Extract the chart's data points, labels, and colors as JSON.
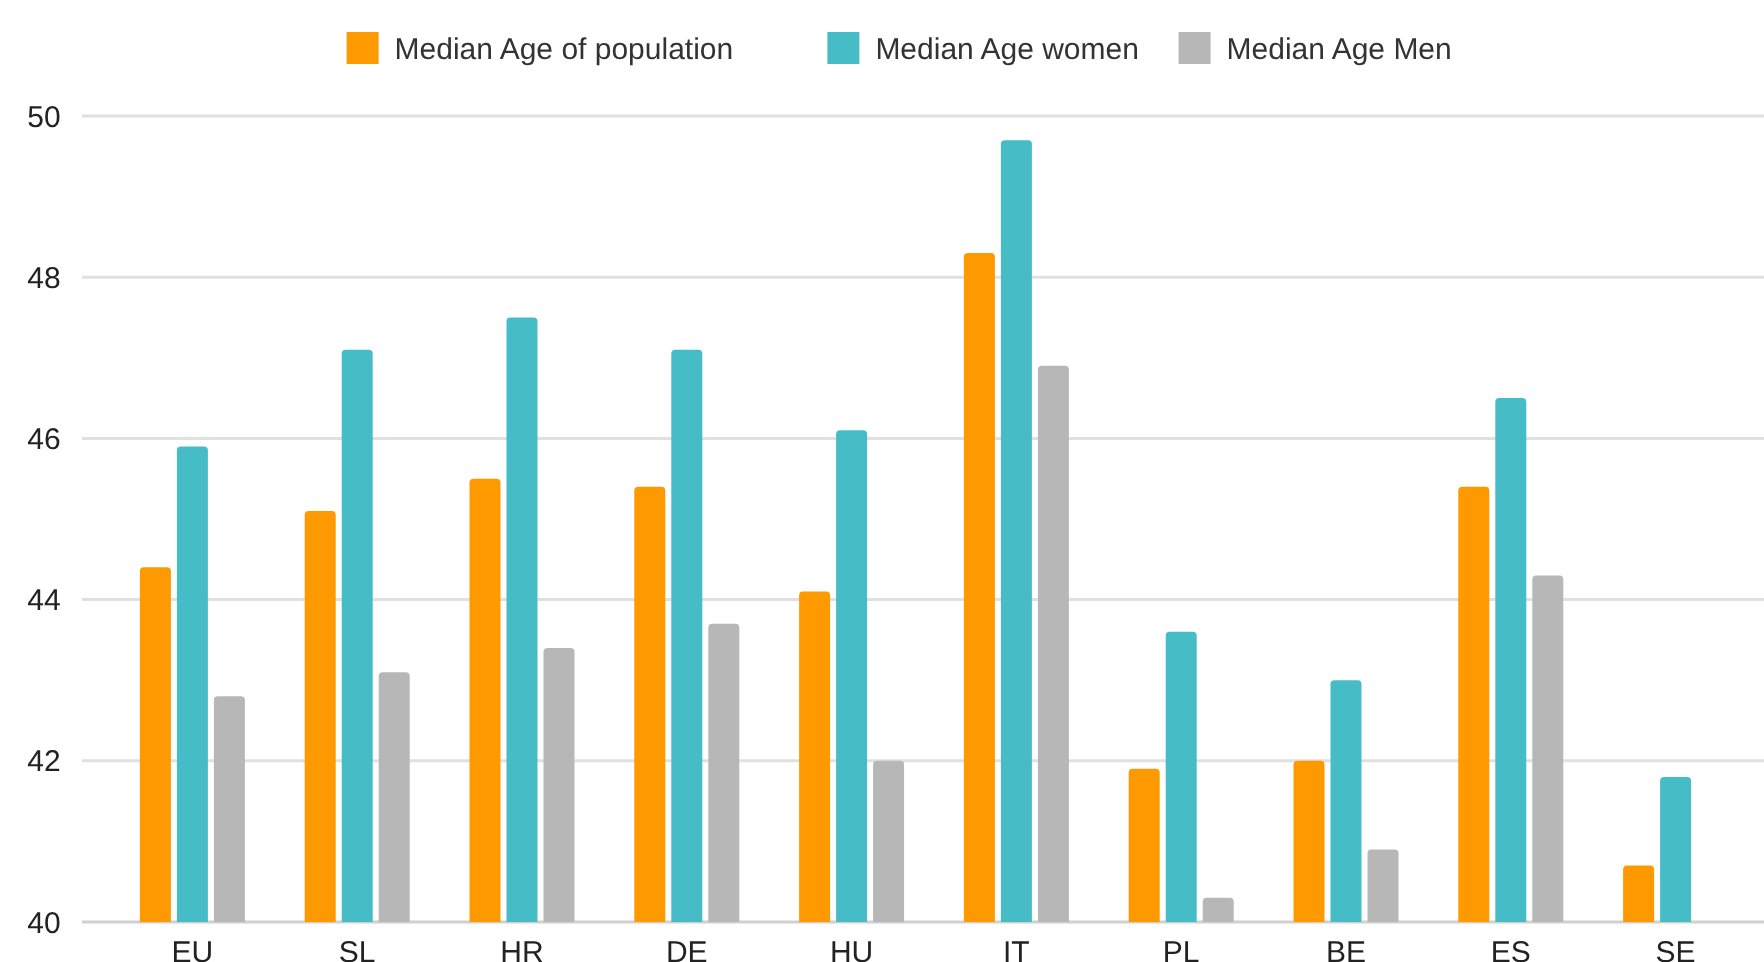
{
  "chart_data": {
    "type": "bar",
    "categories": [
      "EU",
      "SL",
      "HR",
      "DE",
      "HU",
      "IT",
      "PL",
      "BE",
      "ES",
      "SE"
    ],
    "series": [
      {
        "name": "Median Age of population",
        "color": "#ff9900",
        "values": [
          44.4,
          45.1,
          45.5,
          45.4,
          44.1,
          48.3,
          41.9,
          42.0,
          45.4,
          40.7
        ]
      },
      {
        "name": "Median Age women",
        "color": "#46bdc6",
        "values": [
          45.9,
          47.1,
          47.5,
          47.1,
          46.1,
          49.7,
          43.6,
          43.0,
          46.5,
          41.8
        ]
      },
      {
        "name": "Median Age Men",
        "color": "#b7b7b7",
        "values": [
          42.8,
          43.1,
          43.4,
          43.7,
          42.0,
          46.9,
          40.3,
          40.9,
          44.3,
          null
        ]
      }
    ],
    "ylim": [
      40,
      50
    ],
    "yticks": [
      40,
      42,
      44,
      46,
      48,
      50
    ],
    "grid": "y",
    "legend": "top"
  }
}
